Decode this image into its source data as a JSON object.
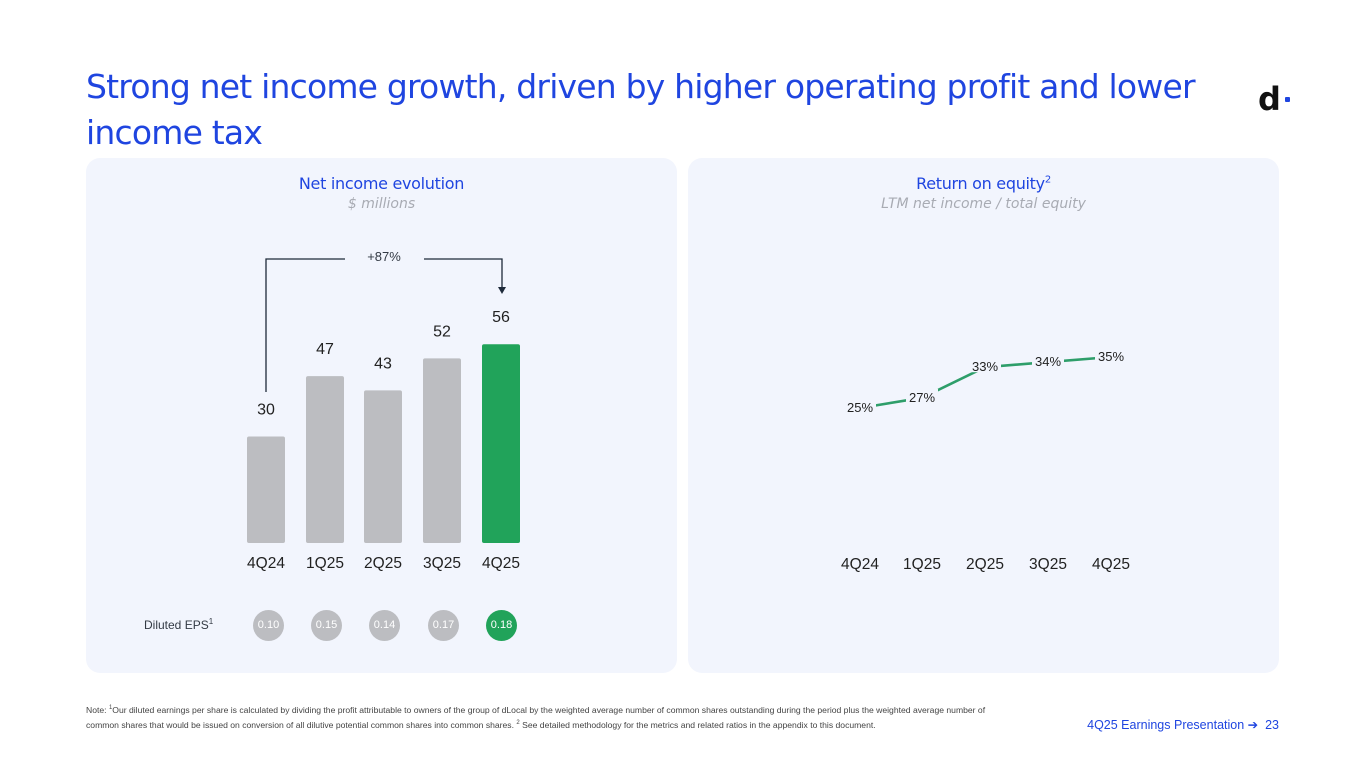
{
  "title": "Strong net income growth, driven by higher operating profit and lower income tax",
  "logo": "d",
  "left_panel": {
    "title": "Net income evolution",
    "subtitle": "$ millions",
    "growth_label": "+87%",
    "eps_label": "Diluted EPS",
    "eps_sup": "1",
    "eps_values": [
      "0.10",
      "0.15",
      "0.14",
      "0.17",
      "0.18"
    ]
  },
  "right_panel": {
    "title": "Return on equity",
    "title_sup": "2",
    "subtitle": "LTM net income / total equity"
  },
  "colors": {
    "brand_blue": "#1f45e0",
    "bar_gray": "#bcbdc1",
    "highlight_green": "#21a35a",
    "line_green": "#2e9e6a",
    "panel_bg": "#f2f5fd"
  },
  "chart_data": [
    {
      "type": "bar",
      "title": "Net income evolution",
      "subtitle": "$ millions",
      "categories": [
        "4Q24",
        "1Q25",
        "2Q25",
        "3Q25",
        "4Q25"
      ],
      "values": [
        30,
        47,
        43,
        52,
        56
      ],
      "value_labels": [
        "30",
        "47",
        "43",
        "52",
        "56"
      ],
      "highlight_index": 4,
      "annotation": "+87%",
      "xlabel": "",
      "ylabel": "",
      "ylim": [
        0,
        60
      ],
      "grid": false
    },
    {
      "type": "line",
      "title": "Return on equity",
      "subtitle": "LTM net income / total equity",
      "categories": [
        "4Q24",
        "1Q25",
        "2Q25",
        "3Q25",
        "4Q25"
      ],
      "values": [
        25,
        27,
        33,
        34,
        35
      ],
      "value_labels": [
        "25%",
        "27%",
        "33%",
        "34%",
        "35%"
      ],
      "xlabel": "",
      "ylabel": "",
      "ylim": [
        0,
        60
      ],
      "grid": false
    }
  ],
  "note": {
    "prefix": "Note: ",
    "sup1": "1",
    "text1": "Our diluted earnings per share is calculated by dividing the profit attributable to owners of the group of dLocal by the weighted average number of common shares outstanding during the period plus the weighted average number of common shares that would be issued on conversion of all dilutive potential common shares into common shares. ",
    "sup2": "2",
    "text2": " See detailed methodology for the metrics and related ratios in the appendix to this document."
  },
  "footer": {
    "text": "4Q25 Earnings Presentation",
    "arrow": "➔",
    "page": "23"
  }
}
